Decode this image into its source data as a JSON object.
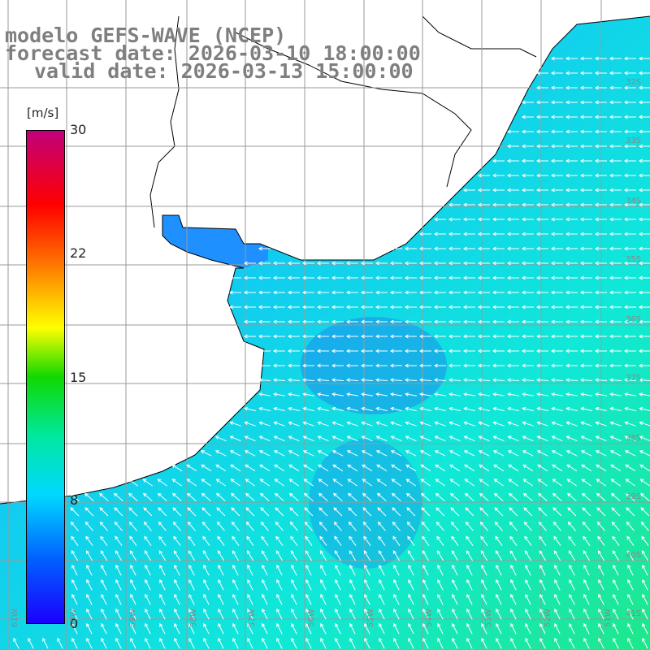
{
  "title": {
    "model": "modelo GEFS-WAVE (NCEP)",
    "forecast": "forecast date: 2026-03-10 18:00:00",
    "valid": "valid date: 2026-03-13 15:00:00"
  },
  "colorbar": {
    "units": "[m/s]",
    "ticks": [
      "30",
      "22",
      "15",
      "8",
      "0"
    ],
    "range": [
      0,
      30
    ]
  },
  "lat_labels": [
    "32S",
    "33S",
    "34S",
    "35S",
    "36S",
    "37S",
    "38S",
    "39S",
    "40S",
    "41S"
  ],
  "lon_labels": [
    "61W",
    "60W",
    "59W",
    "58W",
    "57W",
    "56W",
    "55W",
    "54W",
    "53W",
    "52W",
    "51W"
  ],
  "colors": {
    "land": "#ffffff",
    "coast": "#000000",
    "grid": "#9a9a9a",
    "title": "#7f7f7f",
    "arrows": "#ffffff"
  }
}
